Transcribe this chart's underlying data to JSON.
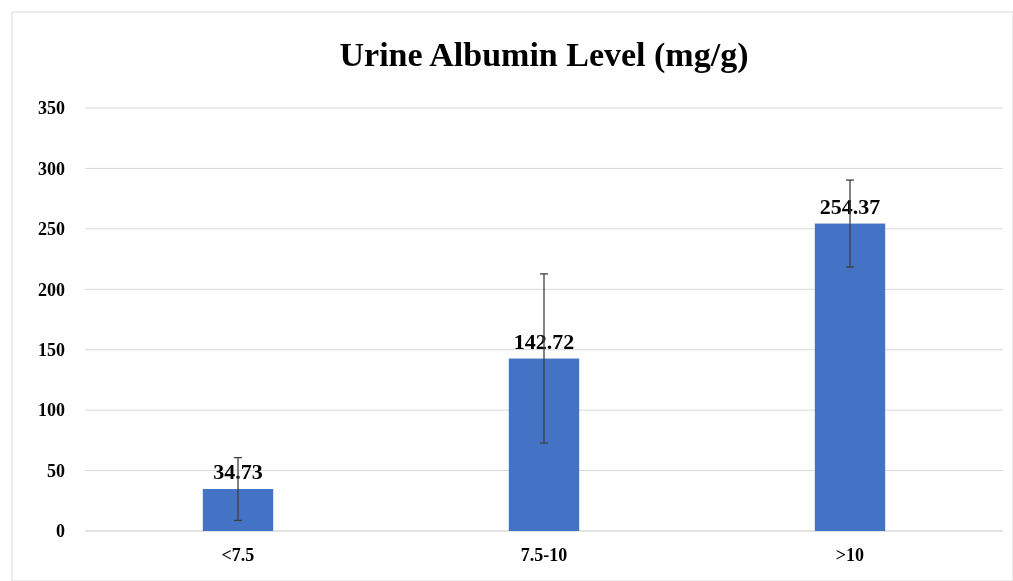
{
  "chart_data": {
    "type": "bar",
    "title": "Urine Albumin Level (mg/g)",
    "categories": [
      "<7.5",
      "7.5-10",
      ">10"
    ],
    "values": [
      34.73,
      142.72,
      254.37
    ],
    "errors": [
      26,
      70,
      36
    ],
    "color": "#4472c4",
    "ylim": [
      0,
      350
    ],
    "yticks": [
      0,
      50,
      100,
      150,
      200,
      250,
      300,
      350
    ],
    "grid": "y",
    "data_labels": true
  }
}
